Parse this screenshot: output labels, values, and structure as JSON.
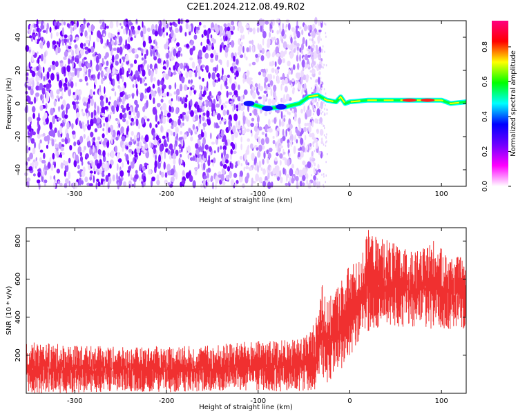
{
  "title": "C2E1.2024.212.08.49.R02",
  "chart_data": [
    {
      "type": "heatmap",
      "xlabel": "Height of straight line (km)",
      "ylabel": "Frequency (Hz)",
      "xlim": [
        -353,
        127
      ],
      "ylim": [
        -50,
        50
      ],
      "x_ticks": [
        -300,
        -200,
        -100,
        0,
        100
      ],
      "y_ticks": [
        -40,
        -20,
        0,
        20,
        40
      ],
      "colorbar": {
        "label": "Normalized spectral amplitude",
        "range": [
          0,
          0.95
        ],
        "ticks": [
          0.0,
          0.2,
          0.4,
          0.6,
          0.8
        ],
        "tick_labels": [
          "0.0",
          "0.2",
          "0.4",
          "0.6",
          "0.8"
        ],
        "colormap": [
          "#ffffff",
          "#ff00ff",
          "#7000ff",
          "#0000ff",
          "#00ffff",
          "#00ff00",
          "#ffff00",
          "#ff0000",
          "#ff0080"
        ]
      },
      "description_points": {
        "noise_band_x": [
          -353,
          -45
        ],
        "signal_line_hz": [
          [
            -110,
            0
          ],
          [
            -90,
            -3
          ],
          [
            -70,
            -2
          ],
          [
            -55,
            0
          ],
          [
            -45,
            4
          ],
          [
            -35,
            5
          ],
          [
            -25,
            2
          ],
          [
            -15,
            1
          ],
          [
            -10,
            4
          ],
          [
            -5,
            0
          ],
          [
            0,
            1
          ],
          [
            20,
            2
          ],
          [
            50,
            2
          ],
          [
            80,
            2
          ],
          [
            100,
            2
          ],
          [
            110,
            0
          ],
          [
            127,
            1
          ]
        ]
      }
    },
    {
      "type": "line",
      "xlabel": "Height of straight line (km)",
      "ylabel": "SNR (10 * v/v)",
      "xlim": [
        -353,
        127
      ],
      "ylim": [
        0,
        870
      ],
      "x_ticks": [
        -300,
        -200,
        -100,
        0,
        100
      ],
      "y_ticks": [
        200,
        400,
        600,
        800
      ],
      "series": [
        {
          "color": "#f03030",
          "x": [
            -353,
            -320,
            -280,
            -240,
            -200,
            -160,
            -120,
            -80,
            -60,
            -45,
            -35,
            -30,
            -25,
            -20,
            -15,
            -10,
            -5,
            0,
            10,
            20,
            30,
            40,
            50,
            60,
            70,
            80,
            90,
            100,
            110,
            120,
            127
          ],
          "low": [
            0,
            0,
            5,
            10,
            5,
            10,
            10,
            10,
            10,
            15,
            20,
            60,
            40,
            80,
            120,
            100,
            150,
            200,
            260,
            320,
            340,
            350,
            350,
            340,
            350,
            340,
            330,
            340,
            330,
            330,
            330
          ],
          "high": [
            270,
            260,
            250,
            240,
            250,
            250,
            270,
            280,
            280,
            320,
            420,
            640,
            480,
            520,
            560,
            600,
            640,
            680,
            700,
            860,
            820,
            820,
            780,
            760,
            740,
            760,
            820,
            760,
            720,
            720,
            680
          ]
        }
      ]
    }
  ]
}
